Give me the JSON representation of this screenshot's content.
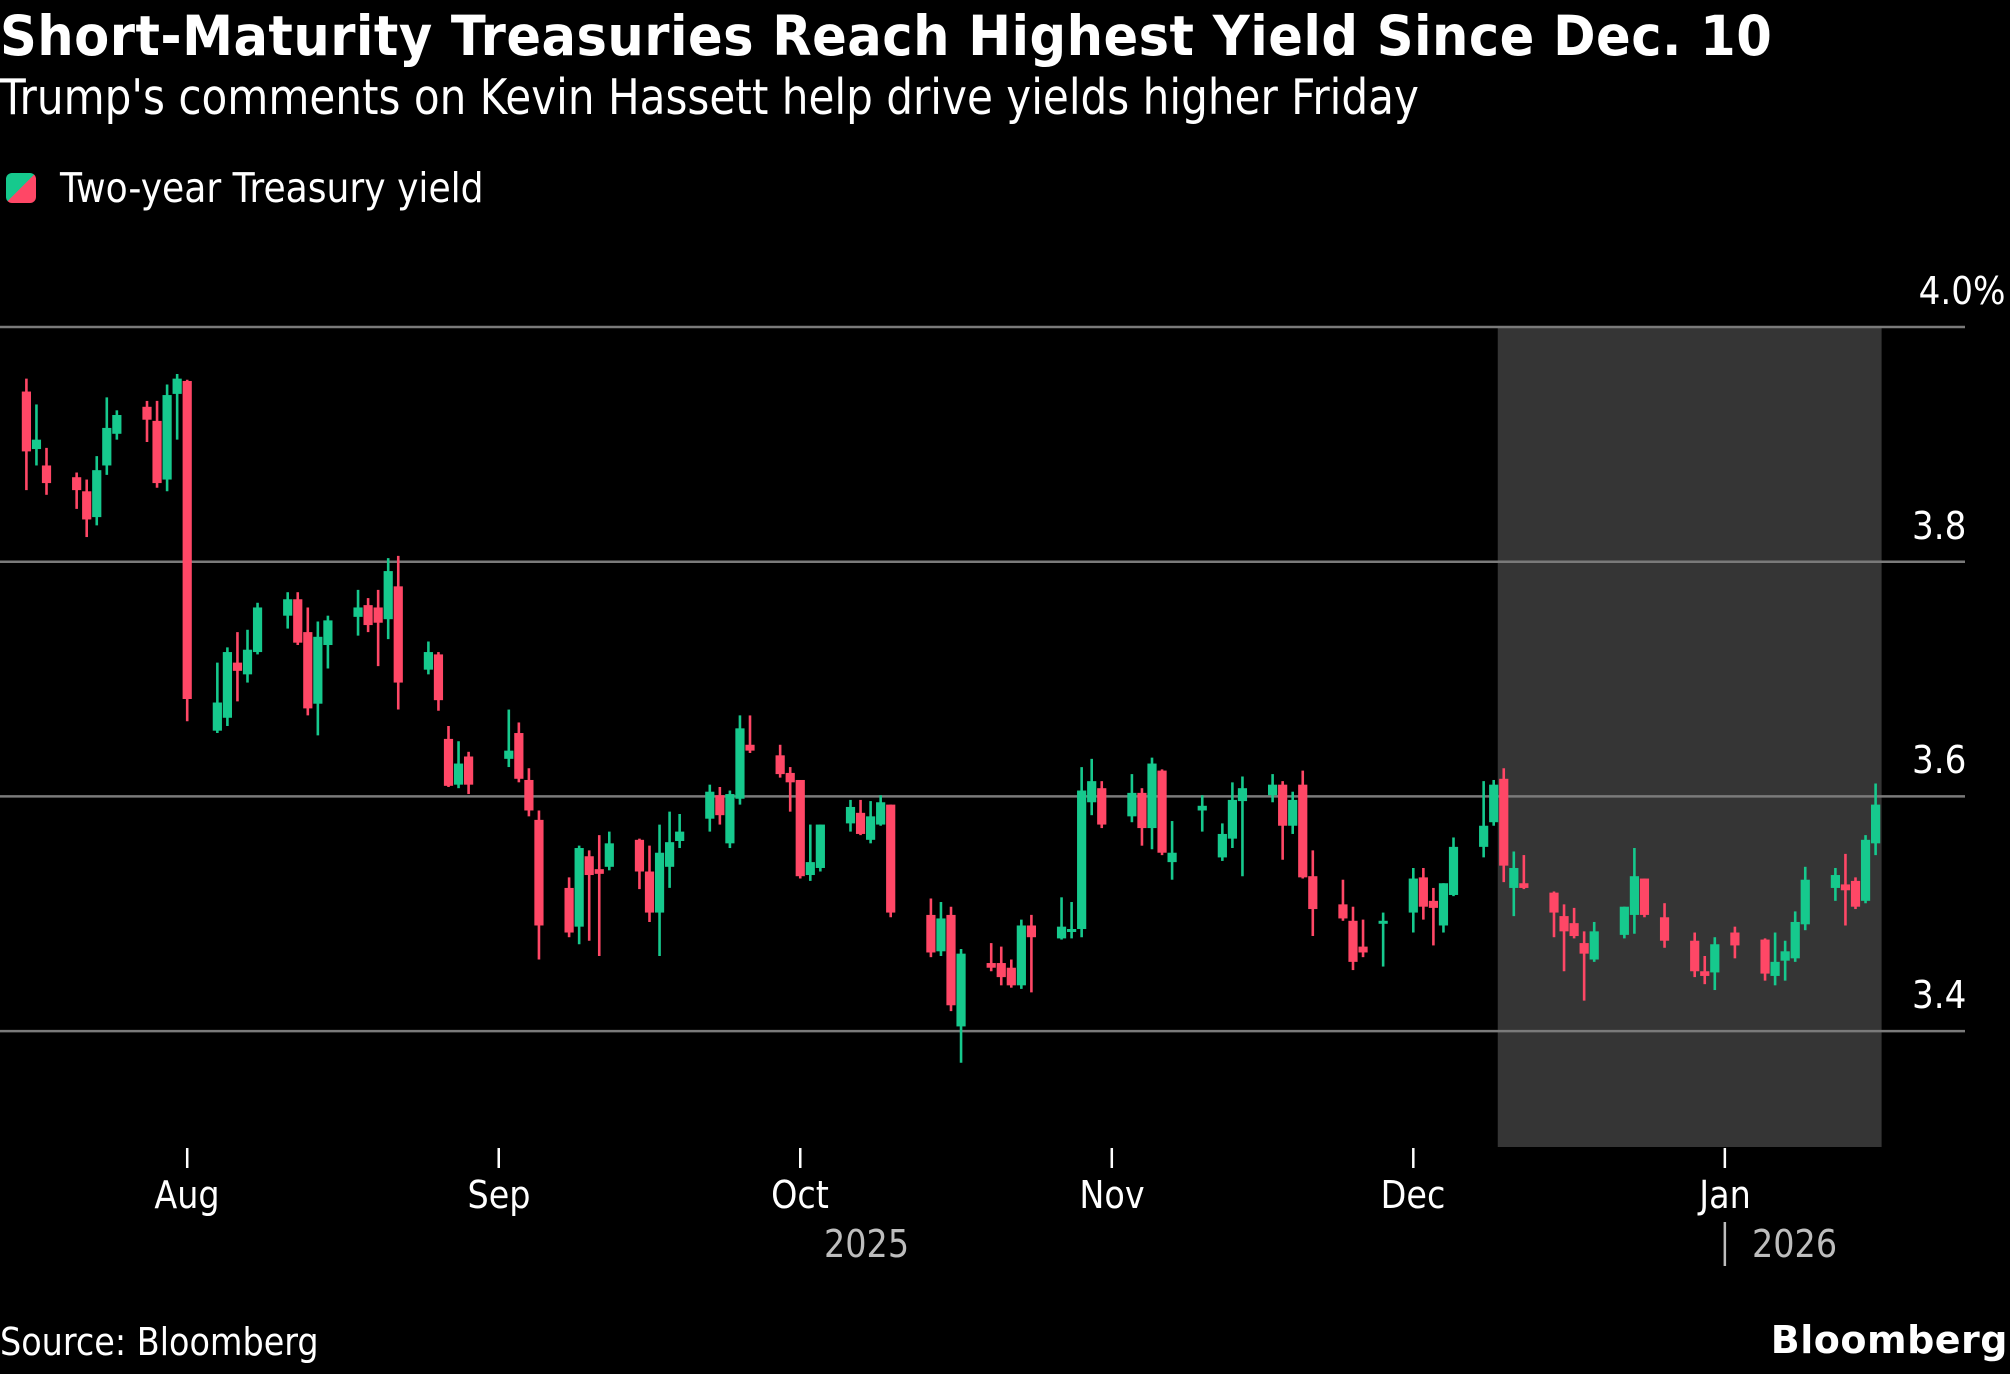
{
  "header": {
    "title": "Short-Maturity Treasuries Reach Highest Yield Since Dec. 10",
    "subtitle": "Trump's comments on Kevin Hassett help drive yields higher Friday"
  },
  "legend": {
    "icon": "candlestick-swatch-icon",
    "label": "Two-year Treasury yield"
  },
  "footer": {
    "source": "Source: Bloomberg",
    "brand": "Bloomberg"
  },
  "colors": {
    "background": "#000000",
    "up": "#16c98d",
    "down": "#ff4766",
    "gridline": "#7a7a7a",
    "highlight": "#353535",
    "text": "#ffffff",
    "muted_text": "#bdbdbd"
  },
  "chart_data": {
    "type": "candlestick",
    "title": "Short-Maturity Treasuries Reach Highest Yield Since Dec. 10",
    "subtitle": "Trump's comments on Kevin Hassett help drive yields higher Friday",
    "xlabel": "",
    "ylabel": "",
    "ylim": [
      3.3,
      4.0
    ],
    "yticks": [
      {
        "value": 4.0,
        "label": "4.0%"
      },
      {
        "value": 3.8,
        "label": "3.8"
      },
      {
        "value": 3.6,
        "label": "3.6"
      },
      {
        "value": 3.4,
        "label": "3.4"
      }
    ],
    "xticks": [
      {
        "date": "2025-08-01",
        "label": "Aug"
      },
      {
        "date": "2025-09-01",
        "label": "Sep"
      },
      {
        "date": "2025-10-01",
        "label": "Oct"
      },
      {
        "date": "2025-11-01",
        "label": "Nov"
      },
      {
        "date": "2025-12-01",
        "label": "Dec"
      },
      {
        "date": "2026-01-01",
        "label": "Jan"
      }
    ],
    "year_labels": [
      {
        "label": "2025"
      },
      {
        "label": "2026"
      }
    ],
    "grid": true,
    "legend_position": "top-left",
    "highlight_region": {
      "start": "2025-12-10",
      "end": "2026-01-16"
    },
    "series": [
      {
        "name": "Two-year Treasury yield",
        "columns": [
          "date",
          "open",
          "high",
          "low",
          "close"
        ],
        "values": [
          [
            "2025-07-16",
            3.945,
            3.956,
            3.861,
            3.894
          ],
          [
            "2025-07-17",
            3.896,
            3.934,
            3.882,
            3.904
          ],
          [
            "2025-07-18",
            3.882,
            3.897,
            3.857,
            3.867
          ],
          [
            "2025-07-21",
            3.872,
            3.876,
            3.845,
            3.861
          ],
          [
            "2025-07-22",
            3.86,
            3.87,
            3.821,
            3.836
          ],
          [
            "2025-07-23",
            3.838,
            3.89,
            3.831,
            3.878
          ],
          [
            "2025-07-24",
            3.882,
            3.94,
            3.874,
            3.914
          ],
          [
            "2025-07-25",
            3.909,
            3.929,
            3.904,
            3.925
          ],
          [
            "2025-07-28",
            3.932,
            3.937,
            3.902,
            3.921
          ],
          [
            "2025-07-29",
            3.92,
            3.937,
            3.863,
            3.867
          ],
          [
            "2025-07-30",
            3.87,
            3.951,
            3.86,
            3.942
          ],
          [
            "2025-07-31",
            3.943,
            3.96,
            3.904,
            3.956
          ],
          [
            "2025-08-01",
            3.954,
            3.955,
            3.664,
            3.683
          ],
          [
            "2025-08-04",
            3.656,
            3.714,
            3.654,
            3.68
          ],
          [
            "2025-08-05",
            3.667,
            3.727,
            3.66,
            3.723
          ],
          [
            "2025-08-06",
            3.714,
            3.74,
            3.681,
            3.707
          ],
          [
            "2025-08-07",
            3.704,
            3.742,
            3.697,
            3.725
          ],
          [
            "2025-08-08",
            3.723,
            3.765,
            3.721,
            3.761
          ],
          [
            "2025-08-11",
            3.754,
            3.774,
            3.743,
            3.768
          ],
          [
            "2025-08-12",
            3.768,
            3.774,
            3.729,
            3.731
          ],
          [
            "2025-08-13",
            3.74,
            3.761,
            3.669,
            3.675
          ],
          [
            "2025-08-14",
            3.679,
            3.749,
            3.652,
            3.736
          ],
          [
            "2025-08-15",
            3.729,
            3.754,
            3.709,
            3.75
          ],
          [
            "2025-08-18",
            3.753,
            3.776,
            3.737,
            3.761
          ],
          [
            "2025-08-19",
            3.763,
            3.769,
            3.74,
            3.746
          ],
          [
            "2025-08-20",
            3.761,
            3.776,
            3.711,
            3.748
          ],
          [
            "2025-08-21",
            3.751,
            3.803,
            3.734,
            3.792
          ],
          [
            "2025-08-22",
            3.779,
            3.805,
            3.674,
            3.697
          ],
          [
            "2025-08-25",
            3.708,
            3.732,
            3.704,
            3.723
          ],
          [
            "2025-08-26",
            3.721,
            3.723,
            3.673,
            3.682
          ],
          [
            "2025-08-27",
            3.649,
            3.66,
            3.608,
            3.609
          ],
          [
            "2025-08-28",
            3.61,
            3.647,
            3.607,
            3.628
          ],
          [
            "2025-08-29",
            3.634,
            3.638,
            3.602,
            3.61
          ],
          [
            "2025-09-02",
            3.632,
            3.674,
            3.625,
            3.639
          ],
          [
            "2025-09-03",
            3.654,
            3.663,
            3.612,
            3.615
          ],
          [
            "2025-09-04",
            3.614,
            3.624,
            3.583,
            3.588
          ],
          [
            "2025-09-05",
            3.58,
            3.588,
            3.461,
            3.49
          ],
          [
            "2025-09-08",
            3.522,
            3.531,
            3.48,
            3.484
          ],
          [
            "2025-09-09",
            3.489,
            3.558,
            3.474,
            3.556
          ],
          [
            "2025-09-10",
            3.549,
            3.554,
            3.477,
            3.533
          ],
          [
            "2025-09-11",
            3.538,
            3.567,
            3.464,
            3.534
          ],
          [
            "2025-09-12",
            3.54,
            3.57,
            3.537,
            3.56
          ],
          [
            "2025-09-15",
            3.563,
            3.564,
            3.521,
            3.536
          ],
          [
            "2025-09-16",
            3.536,
            3.558,
            3.493,
            3.501
          ],
          [
            "2025-09-17",
            3.501,
            3.576,
            3.464,
            3.552
          ],
          [
            "2025-09-18",
            3.54,
            3.587,
            3.522,
            3.561
          ],
          [
            "2025-09-19",
            3.562,
            3.585,
            3.556,
            3.57
          ],
          [
            "2025-09-22",
            3.581,
            3.61,
            3.57,
            3.604
          ],
          [
            "2025-09-23",
            3.601,
            3.608,
            3.576,
            3.584
          ],
          [
            "2025-09-24",
            3.56,
            3.605,
            3.556,
            3.602
          ],
          [
            "2025-09-25",
            3.598,
            3.669,
            3.593,
            3.658
          ],
          [
            "2025-09-26",
            3.644,
            3.669,
            3.637,
            3.639
          ],
          [
            "2025-09-29",
            3.635,
            3.644,
            3.616,
            3.619
          ],
          [
            "2025-09-30",
            3.62,
            3.625,
            3.587,
            3.612
          ],
          [
            "2025-10-01",
            3.614,
            3.614,
            3.53,
            3.532
          ],
          [
            "2025-10-02",
            3.533,
            3.576,
            3.528,
            3.544
          ],
          [
            "2025-10-03",
            3.539,
            3.576,
            3.536,
            3.576
          ],
          [
            "2025-10-06",
            3.577,
            3.597,
            3.57,
            3.591
          ],
          [
            "2025-10-07",
            3.586,
            3.597,
            3.567,
            3.568
          ],
          [
            "2025-10-08",
            3.563,
            3.596,
            3.56,
            3.583
          ],
          [
            "2025-10-09",
            3.576,
            3.601,
            3.575,
            3.595
          ],
          [
            "2025-10-10",
            3.593,
            3.593,
            3.497,
            3.501
          ],
          [
            "2025-10-14",
            3.499,
            3.513,
            3.463,
            3.467
          ],
          [
            "2025-10-15",
            3.468,
            3.51,
            3.464,
            3.496
          ],
          [
            "2025-10-16",
            3.499,
            3.506,
            3.417,
            3.422
          ],
          [
            "2025-10-17",
            3.404,
            3.47,
            3.373,
            3.466
          ],
          [
            "2025-10-20",
            3.458,
            3.475,
            3.451,
            3.454
          ],
          [
            "2025-10-21",
            3.458,
            3.472,
            3.439,
            3.446
          ],
          [
            "2025-10-22",
            3.454,
            3.461,
            3.437,
            3.439
          ],
          [
            "2025-10-23",
            3.439,
            3.495,
            3.436,
            3.49
          ],
          [
            "2025-10-24",
            3.49,
            3.499,
            3.433,
            3.48
          ],
          [
            "2025-10-27",
            3.479,
            3.514,
            3.478,
            3.489
          ],
          [
            "2025-10-28",
            3.486,
            3.51,
            3.479,
            3.487
          ],
          [
            "2025-10-29",
            3.487,
            3.625,
            3.48,
            3.605
          ],
          [
            "2025-10-30",
            3.595,
            3.632,
            3.584,
            3.613
          ],
          [
            "2025-10-31",
            3.607,
            3.613,
            3.573,
            3.576
          ],
          [
            "2025-11-03",
            3.583,
            3.619,
            3.578,
            3.603
          ],
          [
            "2025-11-04",
            3.603,
            3.607,
            3.558,
            3.573
          ],
          [
            "2025-11-05",
            3.573,
            3.633,
            3.555,
            3.628
          ],
          [
            "2025-11-06",
            3.622,
            3.623,
            3.55,
            3.552
          ],
          [
            "2025-11-07",
            3.544,
            3.579,
            3.529,
            3.552
          ],
          [
            "2025-11-10",
            3.588,
            3.601,
            3.57,
            3.592
          ],
          [
            "2025-11-12",
            3.548,
            3.577,
            3.545,
            3.568
          ],
          [
            "2025-11-13",
            3.564,
            3.612,
            3.556,
            3.597
          ],
          [
            "2025-11-14",
            3.596,
            3.617,
            3.532,
            3.607
          ],
          [
            "2025-11-17",
            3.601,
            3.619,
            3.595,
            3.61
          ],
          [
            "2025-11-18",
            3.61,
            3.613,
            3.546,
            3.575
          ],
          [
            "2025-11-19",
            3.575,
            3.604,
            3.568,
            3.597
          ],
          [
            "2025-11-20",
            3.61,
            3.622,
            3.53,
            3.531
          ],
          [
            "2025-11-21",
            3.532,
            3.554,
            3.481,
            3.504
          ],
          [
            "2025-11-24",
            3.508,
            3.529,
            3.494,
            3.496
          ],
          [
            "2025-11-25",
            3.494,
            3.506,
            3.452,
            3.459
          ],
          [
            "2025-11-26",
            3.472,
            3.495,
            3.463,
            3.467
          ],
          [
            "2025-11-28",
            3.492,
            3.501,
            3.455,
            3.494
          ],
          [
            "2025-12-01",
            3.501,
            3.539,
            3.484,
            3.53
          ],
          [
            "2025-12-02",
            3.531,
            3.539,
            3.495,
            3.506
          ],
          [
            "2025-12-03",
            3.511,
            3.522,
            3.473,
            3.505
          ],
          [
            "2025-12-04",
            3.49,
            3.526,
            3.484,
            3.526
          ],
          [
            "2025-12-05",
            3.516,
            3.565,
            3.515,
            3.557
          ],
          [
            "2025-12-08",
            3.557,
            3.613,
            3.548,
            3.575
          ],
          [
            "2025-12-09",
            3.578,
            3.614,
            3.575,
            3.61
          ],
          [
            "2025-12-10",
            3.615,
            3.624,
            3.527,
            3.541
          ],
          [
            "2025-12-11",
            3.522,
            3.553,
            3.498,
            3.539
          ],
          [
            "2025-12-12",
            3.526,
            3.55,
            3.521,
            3.522
          ],
          [
            "2025-12-15",
            3.518,
            3.519,
            3.48,
            3.501
          ],
          [
            "2025-12-16",
            3.498,
            3.508,
            3.451,
            3.485
          ],
          [
            "2025-12-17",
            3.492,
            3.505,
            3.479,
            3.481
          ],
          [
            "2025-12-18",
            3.475,
            3.485,
            3.426,
            3.466
          ],
          [
            "2025-12-19",
            3.461,
            3.493,
            3.459,
            3.485
          ],
          [
            "2025-12-22",
            3.482,
            3.506,
            3.479,
            3.506
          ],
          [
            "2025-12-23",
            3.499,
            3.556,
            3.483,
            3.532
          ],
          [
            "2025-12-24",
            3.53,
            3.53,
            3.497,
            3.499
          ],
          [
            "2025-12-26",
            3.497,
            3.509,
            3.471,
            3.477
          ],
          [
            "2025-12-29",
            3.477,
            3.484,
            3.446,
            3.451
          ],
          [
            "2025-12-30",
            3.451,
            3.464,
            3.44,
            3.447
          ],
          [
            "2025-12-31",
            3.45,
            3.48,
            3.435,
            3.474
          ],
          [
            "2026-01-02",
            3.484,
            3.489,
            3.462,
            3.473
          ],
          [
            "2026-01-05",
            3.478,
            3.479,
            3.443,
            3.449
          ],
          [
            "2026-01-06",
            3.447,
            3.484,
            3.439,
            3.459
          ],
          [
            "2026-01-07",
            3.46,
            3.477,
            3.443,
            3.468
          ],
          [
            "2026-01-08",
            3.462,
            3.502,
            3.459,
            3.493
          ],
          [
            "2026-01-09",
            3.491,
            3.54,
            3.486,
            3.529
          ],
          [
            "2026-01-12",
            3.522,
            3.539,
            3.511,
            3.533
          ],
          [
            "2026-01-13",
            3.525,
            3.551,
            3.49,
            3.52
          ],
          [
            "2026-01-14",
            3.528,
            3.531,
            3.504,
            3.506
          ],
          [
            "2026-01-15",
            3.511,
            3.567,
            3.509,
            3.563
          ],
          [
            "2026-01-16",
            3.56,
            3.611,
            3.55,
            3.593
          ]
        ]
      }
    ]
  }
}
